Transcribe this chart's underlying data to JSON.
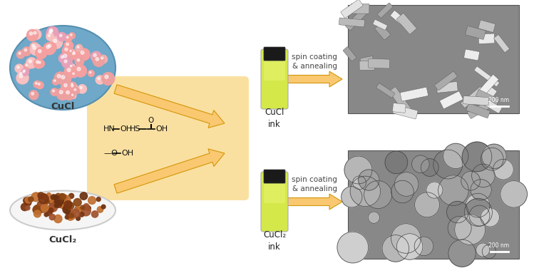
{
  "background_color": "#ffffff",
  "arrow_color": "#F5A623",
  "arrow_facecolor": "#F5C87A",
  "arrow_edgecolor": "#E8A020",
  "cucl_label": "CuCl",
  "cucl2_label": "CuCl₂",
  "cucl_ink_label": "CuCl\nink",
  "cucl2_ink_label": "CuCl₂\nink",
  "spin_coating_label": "spin coating\n& annealing",
  "chemical_formula_line1": "HN——OH HS",
  "chemical_formula_line2": "—O——OH",
  "bottle_body_color": "#D4E84A",
  "bottle_cap_color": "#1a1a1a",
  "cucl_circle_color": "#6FA8C8",
  "cucl2_plate_color": "#f0ede8",
  "scale_bar_text": "200 nm",
  "figwidth": 7.56,
  "figheight": 3.83,
  "dpi": 100
}
